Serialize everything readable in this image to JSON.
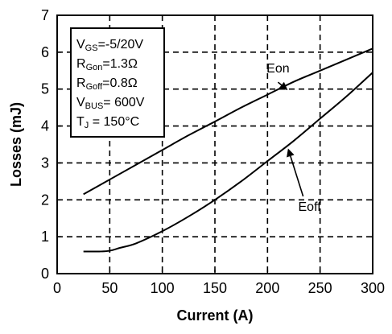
{
  "chart_data": {
    "type": "line",
    "xlabel": "Current (A)",
    "ylabel": "Losses (mJ)",
    "xlim": [
      0,
      300
    ],
    "ylim": [
      0,
      7
    ],
    "x_ticks": [
      0,
      50,
      100,
      150,
      200,
      250,
      300
    ],
    "y_ticks": [
      0,
      1,
      2,
      3,
      4,
      5,
      6,
      7
    ],
    "grid": "dashed",
    "series": [
      {
        "name": "Eon",
        "color": "#000000",
        "x": [
          25,
          50,
          75,
          100,
          125,
          150,
          175,
          200,
          225,
          250,
          275,
          300
        ],
        "y": [
          2.15,
          2.55,
          2.95,
          3.35,
          3.75,
          4.12,
          4.5,
          4.85,
          5.2,
          5.5,
          5.8,
          6.1
        ]
      },
      {
        "name": "Eoff",
        "color": "#000000",
        "x": [
          25,
          40,
          50,
          60,
          75,
          100,
          125,
          150,
          175,
          200,
          225,
          250,
          275,
          300
        ],
        "y": [
          0.6,
          0.6,
          0.62,
          0.7,
          0.82,
          1.15,
          1.55,
          2.0,
          2.5,
          3.05,
          3.6,
          4.2,
          4.8,
          5.45
        ]
      }
    ],
    "annotations": [
      {
        "text": "Eon",
        "x": 210,
        "y": 5.45,
        "target": [
          218,
          5.0
        ]
      },
      {
        "text": "Eoff",
        "x": 240,
        "y": 1.7,
        "target": [
          220,
          3.35
        ]
      }
    ],
    "parameter_box": {
      "lines": [
        {
          "main": "V",
          "sub": "GS",
          "rest": "=-5/20V"
        },
        {
          "main": "R",
          "sub": "Gon",
          "rest": "=1.3Ω"
        },
        {
          "main": "R",
          "sub": "Goff",
          "rest": "=0.8Ω"
        },
        {
          "main": "V",
          "sub": "BUS",
          "rest": "= 600V"
        },
        {
          "main": "T",
          "sub": "J",
          "rest": " = 150°C"
        }
      ]
    }
  }
}
